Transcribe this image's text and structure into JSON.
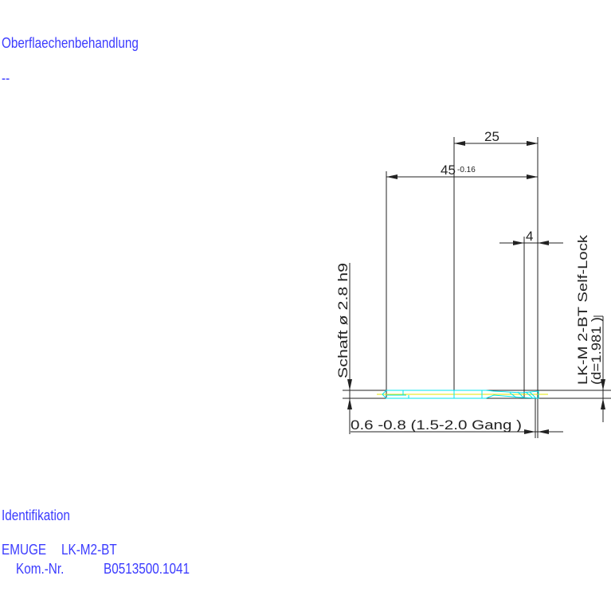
{
  "header": {
    "surface_label": "Oberflaechenbehandlung",
    "surface_value": "--"
  },
  "footer": {
    "ident_label": "Identifikation",
    "brand": "EMUGE",
    "product": "LK-M2-BT",
    "kom_label": "Kom.-Nr.",
    "kom_value": "B0513500.1041"
  },
  "drawing": {
    "dim_25": "25",
    "dim_45": "45",
    "dim_45_tol": "-0.16",
    "dim_4": "4",
    "shank_label": "Schaft ø 2.8  h9",
    "thread_label": "LK-M 2-BT Self-Lock",
    "thread_d": "(d=1.981 )",
    "chamfer_label": "0.6 -0.8 (1.5-2.0 Gang   )",
    "colors": {
      "outline": "#00e5ee",
      "dimension": "#222222",
      "text": "#3b3bff",
      "centerline": "#e6e600"
    }
  }
}
